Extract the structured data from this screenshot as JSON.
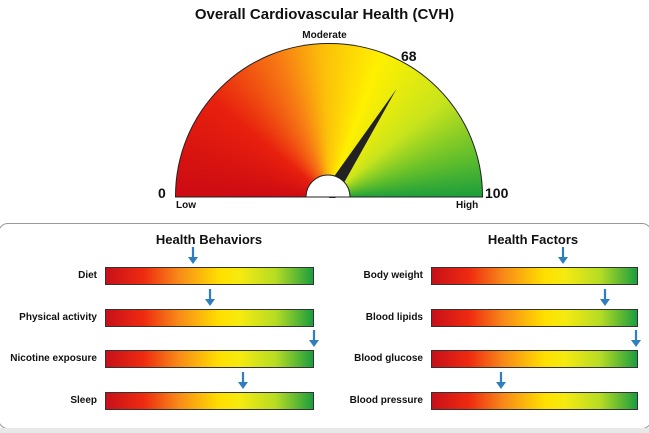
{
  "chart_data": [
    {
      "type": "gauge",
      "title": "Overall Cardiovascular Health (CVH)",
      "value": 68,
      "value_label": "68",
      "range": [
        0,
        100
      ],
      "min_label": "0",
      "max_label": "100",
      "low_label": "Low",
      "mid_label": "Moderate",
      "high_label": "High",
      "colors": {
        "low": "#d40f15",
        "mid": "#ffd400",
        "high": "#1f9e3c",
        "needle": "#222222"
      }
    },
    {
      "type": "bar",
      "title": "Health Behaviors",
      "range": [
        0,
        1
      ],
      "items": [
        {
          "label": "Diet",
          "value": 0.42
        },
        {
          "label": "Physical activity",
          "value": 0.5
        },
        {
          "label": "Nicotine exposure",
          "value": 1.0
        },
        {
          "label": "Sleep",
          "value": 0.66
        }
      ]
    },
    {
      "type": "bar",
      "title": "Health Factors",
      "range": [
        0,
        1
      ],
      "items": [
        {
          "label": "Body weight",
          "value": 0.64
        },
        {
          "label": "Blood lipids",
          "value": 0.84
        },
        {
          "label": "Blood glucose",
          "value": 0.99
        },
        {
          "label": "Blood pressure",
          "value": 0.34
        }
      ]
    }
  ],
  "arrow_color": "#2f7fc0"
}
